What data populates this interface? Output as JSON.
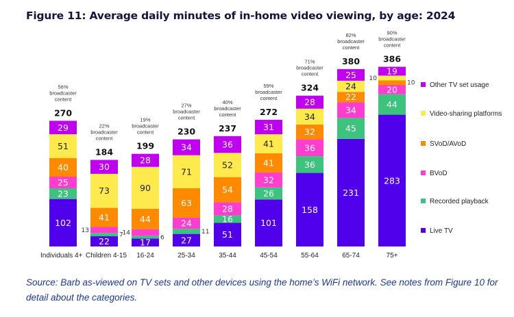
{
  "title": "Figure 11: Average daily minutes of in-home video viewing, by age: 2024",
  "source": "Source: Barb as-viewed on TV sets and other devices using the home’s WiFi network. See notes from Figure 10 for detail about the categories.",
  "chart_data": {
    "type": "stacked-bar",
    "title": "Figure 11: Average daily minutes of in-home video viewing, by age: 2024",
    "categories": [
      "Individuals 4+",
      "Children 4-15",
      "16-24",
      "25-34",
      "35-44",
      "45-54",
      "55-64",
      "65-74",
      "75+"
    ],
    "totals": [
      270,
      184,
      199,
      230,
      237,
      272,
      324,
      380,
      386
    ],
    "broadcaster_content": [
      "56%",
      "22%",
      "19%",
      "27%",
      "40%",
      "59%",
      "71%",
      "82%",
      "90%"
    ],
    "broadcaster_label": "broadcaster content",
    "legend_position": "right",
    "series": [
      {
        "name": "Live TV",
        "color": "#5000ea",
        "values": [
          102,
          22,
          17,
          27,
          51,
          101,
          158,
          231,
          283
        ]
      },
      {
        "name": "Recorded playback",
        "color": "#3cc47e",
        "values": [
          23,
          7,
          6,
          11,
          16,
          26,
          36,
          45,
          44
        ]
      },
      {
        "name": "BVoD",
        "color": "#ff3dcf",
        "values": [
          25,
          13,
          14,
          24,
          28,
          32,
          36,
          34,
          20
        ]
      },
      {
        "name": "SVoD/AVoD",
        "color": "#ff8a00",
        "values": [
          40,
          41,
          44,
          63,
          54,
          41,
          32,
          22,
          10
        ]
      },
      {
        "name": "Video-sharing platforms",
        "color": "#ffea4d",
        "values": [
          51,
          73,
          90,
          71,
          52,
          41,
          34,
          24,
          10
        ]
      },
      {
        "name": "Other TV set usage",
        "color": "#c000f0",
        "values": [
          29,
          30,
          28,
          34,
          36,
          31,
          28,
          25,
          19
        ]
      }
    ]
  }
}
